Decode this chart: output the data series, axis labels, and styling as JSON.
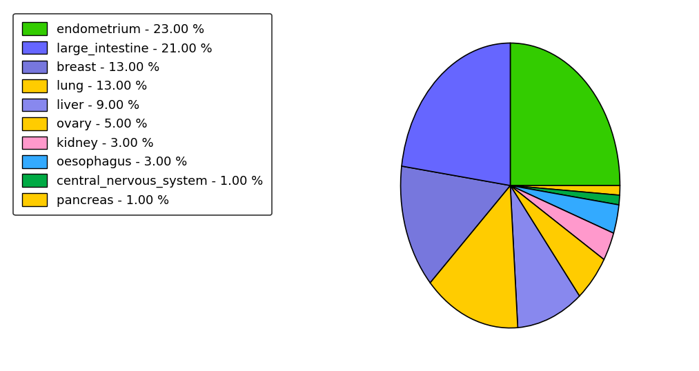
{
  "labels": [
    "endometrium",
    "pancreas",
    "central_nervous_system",
    "oesophagus",
    "kidney",
    "ovary",
    "liver",
    "lung",
    "breast",
    "large_intestine"
  ],
  "values": [
    23,
    1,
    1,
    3,
    3,
    5,
    9,
    13,
    13,
    21
  ],
  "colors": [
    "#33cc00",
    "#ffcc00",
    "#00aa44",
    "#33aaff",
    "#ff99cc",
    "#ffcc00",
    "#8888ee",
    "#ffcc00",
    "#7777dd",
    "#6666ff"
  ],
  "legend_labels": [
    "endometrium - 23.00 %",
    "large_intestine - 21.00 %",
    "breast - 13.00 %",
    "lung - 13.00 %",
    "liver - 9.00 %",
    "ovary - 5.00 %",
    "kidney - 3.00 %",
    "oesophagus - 3.00 %",
    "central_nervous_system - 1.00 %",
    "pancreas - 1.00 %"
  ],
  "legend_colors": [
    "#33cc00",
    "#6666ff",
    "#7777dd",
    "#ffcc00",
    "#8888ee",
    "#ffcc00",
    "#ff99cc",
    "#33aaff",
    "#00aa44",
    "#ffcc00"
  ],
  "startangle": 90,
  "background_color": "#ffffff",
  "legend_fontsize": 13,
  "figsize": [
    10.13,
    5.38
  ],
  "dpi": 100
}
